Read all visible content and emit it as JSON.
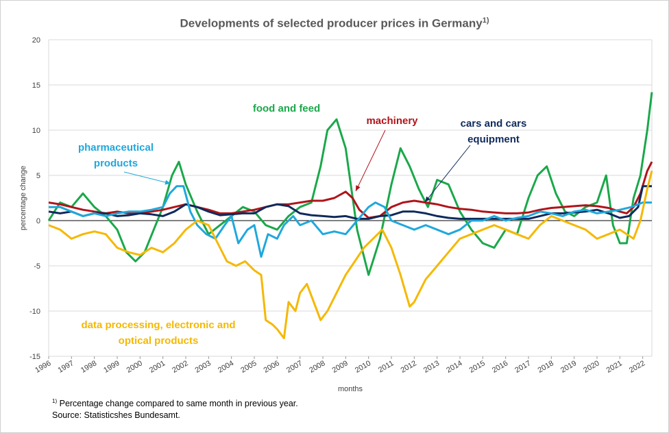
{
  "title": {
    "text": "Developments of selected producer prices in Germany",
    "sup": "1)"
  },
  "footnotes": {
    "note_marker": "1)",
    "note_text": "Percentage change compared to same month in previous year.",
    "source": "Source: Statisticshes Bundesamt."
  },
  "colors": {
    "food": "#1aa84a",
    "machinery": "#b0141a",
    "cars": "#0f2a5c",
    "pharma": "#1fa8dc",
    "data_processing": "#f5b800",
    "zero_line": "#000000",
    "grid": "#d9d9d9"
  },
  "chart_data": {
    "type": "line",
    "title": "Developments of selected producer prices in Germany",
    "xlabel": "months",
    "ylabel": "percentage change",
    "ylim": [
      -15,
      20
    ],
    "yticks": [
      -15,
      -10,
      -5,
      0,
      5,
      10,
      15,
      20
    ],
    "xlim": [
      1996,
      2022.4
    ],
    "xticks": [
      "1996",
      "1997",
      "1998",
      "1999",
      "2000",
      "2001",
      "2002",
      "2003",
      "2004",
      "2005",
      "2006",
      "2007",
      "2008",
      "2009",
      "2010",
      "2011",
      "2012",
      "2013",
      "2014",
      "2015",
      "2016",
      "2017",
      "2018",
      "2019",
      "2020",
      "2021",
      "2022"
    ],
    "grid": "horizontal",
    "legend": "inline labels",
    "series": [
      {
        "name": "food and feed",
        "key": "food",
        "x": [
          1996.0,
          1996.5,
          1997.0,
          1997.5,
          1998.0,
          1998.5,
          1999.0,
          1999.4,
          1999.8,
          2000.2,
          2000.6,
          2001.0,
          2001.4,
          2001.7,
          2002.0,
          2002.5,
          2003.0,
          2003.5,
          2004.0,
          2004.5,
          2005.0,
          2005.5,
          2006.0,
          2006.5,
          2007.0,
          2007.5,
          2007.9,
          2008.2,
          2008.6,
          2009.0,
          2009.5,
          2010.0,
          2010.5,
          2011.0,
          2011.4,
          2011.8,
          2012.2,
          2012.6,
          2013.0,
          2013.5,
          2014.0,
          2014.5,
          2015.0,
          2015.5,
          2016.0,
          2016.5,
          2017.0,
          2017.4,
          2017.8,
          2018.2,
          2018.6,
          2019.0,
          2019.5,
          2020.0,
          2020.4,
          2020.7,
          2021.0,
          2021.3,
          2021.6,
          2021.9,
          2022.2,
          2022.4
        ],
        "y": [
          0.0,
          2.0,
          1.5,
          3.0,
          1.5,
          0.5,
          -1.0,
          -3.5,
          -4.5,
          -3.5,
          -1.0,
          1.5,
          5.0,
          6.5,
          4.0,
          1.0,
          -1.5,
          -0.5,
          0.5,
          1.5,
          1.0,
          -0.5,
          -1.0,
          0.5,
          1.5,
          2.0,
          6.0,
          10.0,
          11.2,
          8.0,
          -1.0,
          -6.0,
          -2.0,
          4.0,
          8.0,
          6.0,
          3.5,
          1.5,
          4.5,
          4.0,
          1.0,
          -1.0,
          -2.5,
          -3.0,
          -1.0,
          -1.5,
          2.5,
          5.0,
          6.0,
          3.0,
          1.0,
          0.5,
          1.5,
          2.0,
          5.0,
          -0.5,
          -2.5,
          -2.5,
          2.5,
          5.0,
          10.0,
          14.2
        ]
      },
      {
        "name": "machinery",
        "key": "machinery",
        "x": [
          1996.0,
          1996.5,
          1997.0,
          1997.5,
          1998.0,
          1998.5,
          1999.0,
          1999.5,
          2000.0,
          2000.5,
          2001.0,
          2001.5,
          2002.0,
          2002.5,
          2003.0,
          2003.5,
          2004.0,
          2004.5,
          2005.0,
          2005.5,
          2006.0,
          2006.5,
          2007.0,
          2007.5,
          2008.0,
          2008.5,
          2009.0,
          2009.3,
          2009.6,
          2010.0,
          2010.5,
          2011.0,
          2011.5,
          2012.0,
          2012.5,
          2013.0,
          2013.5,
          2014.0,
          2014.5,
          2015.0,
          2015.5,
          2016.0,
          2016.5,
          2017.0,
          2017.5,
          2018.0,
          2018.5,
          2019.0,
          2019.5,
          2020.0,
          2020.5,
          2021.0,
          2021.3,
          2021.6,
          2021.9,
          2022.2,
          2022.4
        ],
        "y": [
          2.0,
          1.8,
          1.5,
          1.2,
          1.0,
          0.8,
          1.0,
          0.8,
          0.8,
          1.0,
          1.2,
          1.5,
          1.8,
          1.5,
          1.2,
          0.8,
          0.8,
          1.0,
          1.2,
          1.5,
          1.8,
          1.8,
          2.0,
          2.2,
          2.2,
          2.5,
          3.2,
          2.5,
          1.2,
          0.3,
          0.5,
          1.5,
          2.0,
          2.2,
          2.0,
          1.8,
          1.5,
          1.3,
          1.2,
          1.0,
          0.9,
          0.8,
          0.8,
          0.9,
          1.2,
          1.4,
          1.5,
          1.6,
          1.7,
          1.6,
          1.4,
          1.0,
          0.8,
          1.5,
          3.0,
          5.5,
          6.5
        ]
      },
      {
        "name": "cars and cars equipment",
        "key": "cars",
        "x": [
          1996.0,
          1996.5,
          1997.0,
          1997.5,
          1998.0,
          1998.5,
          1999.0,
          1999.5,
          2000.0,
          2000.5,
          2001.0,
          2001.5,
          2002.0,
          2002.5,
          2003.0,
          2003.5,
          2004.0,
          2004.5,
          2005.0,
          2005.5,
          2006.0,
          2006.5,
          2007.0,
          2007.5,
          2008.0,
          2008.5,
          2009.0,
          2009.5,
          2010.0,
          2010.5,
          2011.0,
          2011.5,
          2012.0,
          2012.5,
          2013.0,
          2013.5,
          2014.0,
          2014.5,
          2015.0,
          2015.5,
          2016.0,
          2016.5,
          2017.0,
          2017.5,
          2018.0,
          2018.5,
          2019.0,
          2019.5,
          2020.0,
          2020.5,
          2021.0,
          2021.4,
          2021.8,
          2022.0,
          2022.4
        ],
        "y": [
          1.0,
          0.8,
          1.0,
          0.5,
          0.8,
          0.8,
          0.5,
          0.6,
          0.8,
          0.7,
          0.5,
          1.0,
          1.8,
          1.5,
          1.0,
          0.6,
          0.7,
          0.8,
          0.8,
          1.5,
          1.8,
          1.6,
          0.8,
          0.6,
          0.5,
          0.4,
          0.5,
          0.2,
          0.2,
          0.5,
          0.6,
          1.0,
          1.0,
          0.8,
          0.5,
          0.3,
          0.2,
          0.2,
          0.2,
          0.2,
          0.2,
          0.2,
          0.2,
          0.5,
          0.8,
          0.8,
          0.9,
          1.0,
          1.2,
          0.8,
          0.3,
          0.5,
          1.5,
          3.8,
          3.8
        ]
      },
      {
        "name": "pharmaceutical products",
        "key": "pharma",
        "x": [
          1996.0,
          1996.5,
          1997.0,
          1997.5,
          1998.0,
          1998.5,
          1999.0,
          1999.5,
          2000.0,
          2000.5,
          2001.0,
          2001.3,
          2001.6,
          2001.9,
          2002.2,
          2002.5,
          2002.9,
          2003.3,
          2003.7,
          2004.0,
          2004.3,
          2004.7,
          2005.0,
          2005.3,
          2005.6,
          2006.0,
          2006.3,
          2006.7,
          2007.0,
          2007.5,
          2008.0,
          2008.5,
          2009.0,
          2009.5,
          2010.0,
          2010.3,
          2010.7,
          2011.0,
          2011.5,
          2012.0,
          2012.5,
          2013.0,
          2013.5,
          2014.0,
          2014.5,
          2015.0,
          2015.5,
          2016.0,
          2016.5,
          2017.0,
          2017.5,
          2018.0,
          2018.5,
          2019.0,
          2019.5,
          2020.0,
          2020.5,
          2021.0,
          2021.5,
          2022.0,
          2022.4
        ],
        "y": [
          1.5,
          1.5,
          1.0,
          0.5,
          0.8,
          0.5,
          0.8,
          1.0,
          1.0,
          1.2,
          1.5,
          3.0,
          3.8,
          3.8,
          1.0,
          -0.5,
          -1.5,
          -2.0,
          -0.5,
          0.5,
          -2.5,
          -1.0,
          -0.5,
          -4.0,
          -1.5,
          -2.0,
          -0.5,
          0.5,
          -0.5,
          0.0,
          -1.5,
          -1.2,
          -1.5,
          0.0,
          1.5,
          2.0,
          1.5,
          0.0,
          -0.5,
          -1.0,
          -0.5,
          -1.0,
          -1.5,
          -1.0,
          0.0,
          0.0,
          0.5,
          0.0,
          0.3,
          0.5,
          1.0,
          0.8,
          0.5,
          1.0,
          1.2,
          0.8,
          1.0,
          1.2,
          1.5,
          2.0,
          2.0
        ]
      },
      {
        "name": "data processing, electronic and optical products",
        "key": "data_processing",
        "x": [
          1996.0,
          1996.5,
          1997.0,
          1997.5,
          1998.0,
          1998.5,
          1999.0,
          1999.5,
          2000.0,
          2000.5,
          2001.0,
          2001.5,
          2002.0,
          2002.5,
          2003.0,
          2003.4,
          2003.8,
          2004.2,
          2004.6,
          2005.0,
          2005.3,
          2005.5,
          2005.8,
          2006.0,
          2006.3,
          2006.5,
          2006.8,
          2007.0,
          2007.3,
          2007.6,
          2007.9,
          2008.2,
          2008.6,
          2009.0,
          2009.4,
          2009.8,
          2010.2,
          2010.6,
          2011.0,
          2011.4,
          2011.8,
          2012.0,
          2012.5,
          2013.0,
          2013.5,
          2014.0,
          2014.5,
          2015.0,
          2015.5,
          2016.0,
          2016.5,
          2017.0,
          2017.5,
          2018.0,
          2018.5,
          2019.0,
          2019.5,
          2020.0,
          2020.5,
          2021.0,
          2021.3,
          2021.6,
          2021.9,
          2022.2,
          2022.4
        ],
        "y": [
          -0.5,
          -1.0,
          -2.0,
          -1.5,
          -1.2,
          -1.5,
          -3.0,
          -3.5,
          -3.8,
          -3.0,
          -3.5,
          -2.5,
          -1.0,
          0.0,
          -0.5,
          -2.5,
          -4.5,
          -5.0,
          -4.5,
          -5.5,
          -6.0,
          -11.0,
          -11.5,
          -12.0,
          -13.0,
          -9.0,
          -10.0,
          -8.0,
          -7.0,
          -9.0,
          -11.0,
          -10.0,
          -8.0,
          -6.0,
          -4.5,
          -3.0,
          -2.0,
          -1.0,
          -3.0,
          -6.0,
          -9.5,
          -9.0,
          -6.5,
          -5.0,
          -3.5,
          -2.0,
          -1.5,
          -1.0,
          -0.5,
          -1.0,
          -1.5,
          -2.0,
          -0.5,
          0.5,
          0.0,
          -0.5,
          -1.0,
          -2.0,
          -1.5,
          -1.0,
          -1.5,
          -2.0,
          0.0,
          3.5,
          5.5
        ]
      }
    ],
    "labels": {
      "food": [
        "food and feed"
      ],
      "machinery": [
        "machinery"
      ],
      "cars": [
        "cars and cars",
        "equipment"
      ],
      "pharma": [
        "pharmaceutical",
        "products"
      ],
      "data_processing": [
        "data processing, electronic and",
        "optical products"
      ]
    }
  }
}
